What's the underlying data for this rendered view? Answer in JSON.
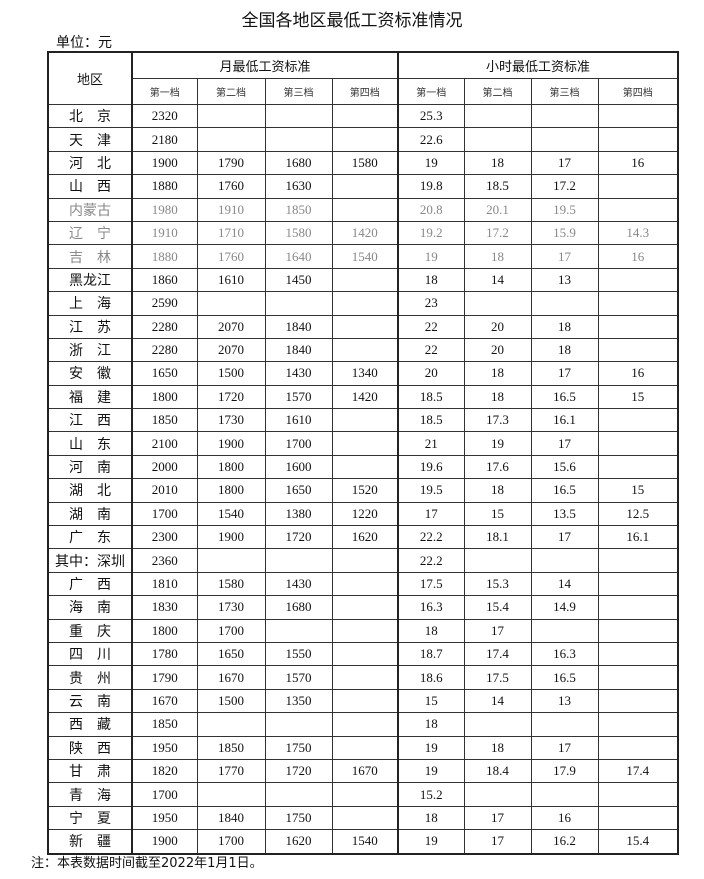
{
  "title": "全国各地区最低工资标准情况",
  "unit": "单位：元",
  "headers": {
    "region": "地区",
    "monthly": "月最低工资标准",
    "hourly": "小时最低工资标准",
    "tiers": [
      "第一档",
      "第二档",
      "第三档",
      "第四档"
    ]
  },
  "rows": [
    {
      "region": "北　京",
      "monthly": [
        "2320",
        "",
        "",
        ""
      ],
      "hourly": [
        "25.3",
        "",
        "",
        ""
      ]
    },
    {
      "region": "天　津",
      "monthly": [
        "2180",
        "",
        "",
        ""
      ],
      "hourly": [
        "22.6",
        "",
        "",
        ""
      ]
    },
    {
      "region": "河　北",
      "monthly": [
        "1900",
        "1790",
        "1680",
        "1580"
      ],
      "hourly": [
        "19",
        "18",
        "17",
        "16"
      ]
    },
    {
      "region": "山　西",
      "monthly": [
        "1880",
        "1760",
        "1630",
        ""
      ],
      "hourly": [
        "19.8",
        "18.5",
        "17.2",
        ""
      ]
    },
    {
      "region": "内蒙古",
      "monthly": [
        "1980",
        "1910",
        "1850",
        ""
      ],
      "hourly": [
        "20.8",
        "20.1",
        "19.5",
        ""
      ],
      "muted": true
    },
    {
      "region": "辽　宁",
      "monthly": [
        "1910",
        "1710",
        "1580",
        "1420"
      ],
      "hourly": [
        "19.2",
        "17.2",
        "15.9",
        "14.3"
      ],
      "muted": true
    },
    {
      "region": "吉　林",
      "monthly": [
        "1880",
        "1760",
        "1640",
        "1540"
      ],
      "hourly": [
        "19",
        "18",
        "17",
        "16"
      ],
      "muted": true
    },
    {
      "region": "黑龙江",
      "monthly": [
        "1860",
        "1610",
        "1450",
        ""
      ],
      "hourly": [
        "18",
        "14",
        "13",
        ""
      ]
    },
    {
      "region": "上　海",
      "monthly": [
        "2590",
        "",
        "",
        ""
      ],
      "hourly": [
        "23",
        "",
        "",
        ""
      ]
    },
    {
      "region": "江　苏",
      "monthly": [
        "2280",
        "2070",
        "1840",
        ""
      ],
      "hourly": [
        "22",
        "20",
        "18",
        ""
      ]
    },
    {
      "region": "浙　江",
      "monthly": [
        "2280",
        "2070",
        "1840",
        ""
      ],
      "hourly": [
        "22",
        "20",
        "18",
        ""
      ]
    },
    {
      "region": "安　徽",
      "monthly": [
        "1650",
        "1500",
        "1430",
        "1340"
      ],
      "hourly": [
        "20",
        "18",
        "17",
        "16"
      ]
    },
    {
      "region": "福　建",
      "monthly": [
        "1800",
        "1720",
        "1570",
        "1420"
      ],
      "hourly": [
        "18.5",
        "18",
        "16.5",
        "15"
      ]
    },
    {
      "region": "江　西",
      "monthly": [
        "1850",
        "1730",
        "1610",
        ""
      ],
      "hourly": [
        "18.5",
        "17.3",
        "16.1",
        ""
      ]
    },
    {
      "region": "山　东",
      "monthly": [
        "2100",
        "1900",
        "1700",
        ""
      ],
      "hourly": [
        "21",
        "19",
        "17",
        ""
      ]
    },
    {
      "region": "河　南",
      "monthly": [
        "2000",
        "1800",
        "1600",
        ""
      ],
      "hourly": [
        "19.6",
        "17.6",
        "15.6",
        ""
      ]
    },
    {
      "region": "湖　北",
      "monthly": [
        "2010",
        "1800",
        "1650",
        "1520"
      ],
      "hourly": [
        "19.5",
        "18",
        "16.5",
        "15"
      ]
    },
    {
      "region": "湖　南",
      "monthly": [
        "1700",
        "1540",
        "1380",
        "1220"
      ],
      "hourly": [
        "17",
        "15",
        "13.5",
        "12.5"
      ]
    },
    {
      "region": "广　东",
      "monthly": [
        "2300",
        "1900",
        "1720",
        "1620"
      ],
      "hourly": [
        "22.2",
        "18.1",
        "17",
        "16.1"
      ]
    },
    {
      "region": "其中：深圳",
      "monthly": [
        "2360",
        "",
        "",
        ""
      ],
      "hourly": [
        "22.2",
        "",
        "",
        ""
      ]
    },
    {
      "region": "广　西",
      "monthly": [
        "1810",
        "1580",
        "1430",
        ""
      ],
      "hourly": [
        "17.5",
        "15.3",
        "14",
        ""
      ]
    },
    {
      "region": "海　南",
      "monthly": [
        "1830",
        "1730",
        "1680",
        ""
      ],
      "hourly": [
        "16.3",
        "15.4",
        "14.9",
        ""
      ]
    },
    {
      "region": "重　庆",
      "monthly": [
        "1800",
        "1700",
        "",
        ""
      ],
      "hourly": [
        "18",
        "17",
        "",
        ""
      ]
    },
    {
      "region": "四　川",
      "monthly": [
        "1780",
        "1650",
        "1550",
        ""
      ],
      "hourly": [
        "18.7",
        "17.4",
        "16.3",
        ""
      ]
    },
    {
      "region": "贵　州",
      "monthly": [
        "1790",
        "1670",
        "1570",
        ""
      ],
      "hourly": [
        "18.6",
        "17.5",
        "16.5",
        ""
      ]
    },
    {
      "region": "云　南",
      "monthly": [
        "1670",
        "1500",
        "1350",
        ""
      ],
      "hourly": [
        "15",
        "14",
        "13",
        ""
      ]
    },
    {
      "region": "西　藏",
      "monthly": [
        "1850",
        "",
        "",
        ""
      ],
      "hourly": [
        "18",
        "",
        "",
        ""
      ]
    },
    {
      "region": "陕　西",
      "monthly": [
        "1950",
        "1850",
        "1750",
        ""
      ],
      "hourly": [
        "19",
        "18",
        "17",
        ""
      ]
    },
    {
      "region": "甘　肃",
      "monthly": [
        "1820",
        "1770",
        "1720",
        "1670"
      ],
      "hourly": [
        "19",
        "18.4",
        "17.9",
        "17.4"
      ]
    },
    {
      "region": "青　海",
      "monthly": [
        "1700",
        "",
        "",
        ""
      ],
      "hourly": [
        "15.2",
        "",
        "",
        ""
      ]
    },
    {
      "region": "宁　夏",
      "monthly": [
        "1950",
        "1840",
        "1750",
        ""
      ],
      "hourly": [
        "18",
        "17",
        "16",
        ""
      ]
    },
    {
      "region": "新　疆",
      "monthly": [
        "1900",
        "1700",
        "1620",
        "1540"
      ],
      "hourly": [
        "19",
        "17",
        "16.2",
        "15.4"
      ]
    }
  ],
  "note": "注：本表数据时间截至2022年1月1日。"
}
